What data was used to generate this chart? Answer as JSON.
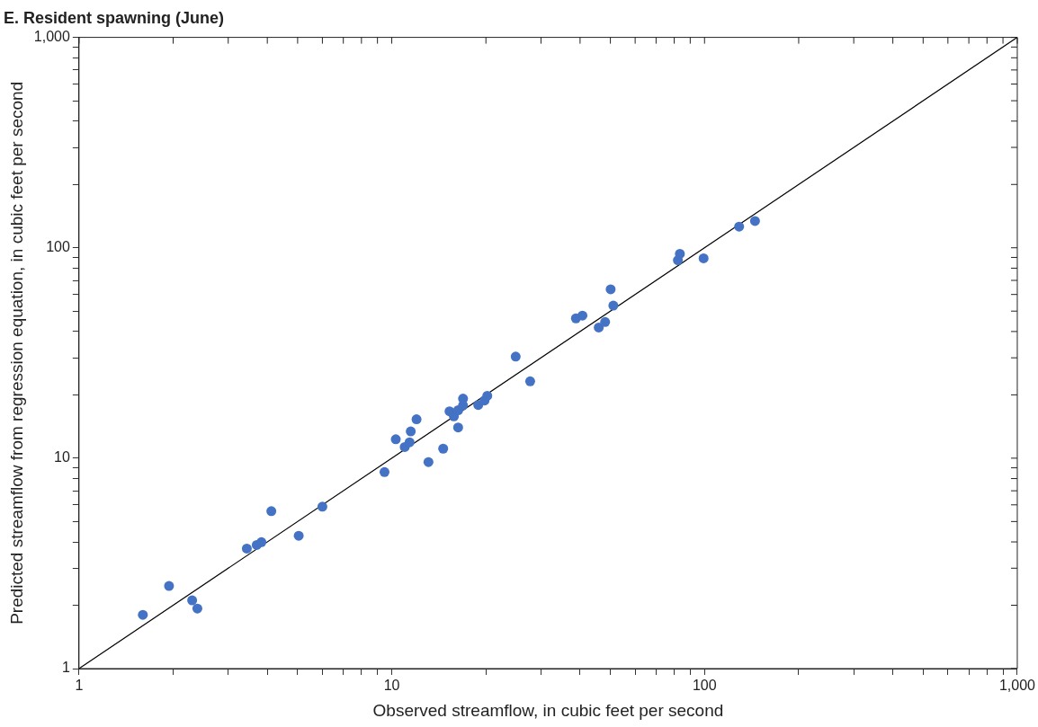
{
  "chart_data": {
    "type": "scatter",
    "title": "E. Resident spawning (June)",
    "xlabel": "Observed streamflow, in cubic feet per second",
    "ylabel": "Predicted streamflow from regression equation, in cubic feet per second",
    "log": "xy",
    "grid": false,
    "legend": false,
    "marker": "circle",
    "xlim": [
      1,
      1000
    ],
    "ylim": [
      1,
      1000
    ],
    "xticks": [
      1,
      {
        "value": 2,
        "label": null
      },
      {
        "value": 3,
        "label": null
      },
      {
        "value": 4,
        "label": null
      },
      {
        "value": 5,
        "label": null
      },
      {
        "value": 6,
        "label": null
      },
      {
        "value": 7,
        "label": null
      },
      {
        "value": 8,
        "label": null
      },
      {
        "value": 9,
        "label": null
      },
      10,
      {
        "value": 20,
        "label": null
      },
      {
        "value": 30,
        "label": null
      },
      {
        "value": 40,
        "label": null
      },
      {
        "value": 50,
        "label": null
      },
      {
        "value": 60,
        "label": null
      },
      {
        "value": 70,
        "label": null
      },
      {
        "value": 80,
        "label": null
      },
      {
        "value": 90,
        "label": null
      },
      100,
      {
        "value": 200,
        "label": null
      },
      {
        "value": 300,
        "label": null
      },
      {
        "value": 400,
        "label": null
      },
      {
        "value": 500,
        "label": null
      },
      {
        "value": 600,
        "label": null
      },
      {
        "value": 700,
        "label": null
      },
      {
        "value": 800,
        "label": null
      },
      {
        "value": 900,
        "label": null
      },
      {
        "value": 1000,
        "label": "1,000"
      }
    ],
    "yticks": [
      1,
      {
        "value": 2,
        "label": null
      },
      {
        "value": 3,
        "label": null
      },
      {
        "value": 4,
        "label": null
      },
      {
        "value": 5,
        "label": null
      },
      {
        "value": 6,
        "label": null
      },
      {
        "value": 7,
        "label": null
      },
      {
        "value": 8,
        "label": null
      },
      {
        "value": 9,
        "label": null
      },
      10,
      {
        "value": 20,
        "label": null
      },
      {
        "value": 30,
        "label": null
      },
      {
        "value": 40,
        "label": null
      },
      {
        "value": 50,
        "label": null
      },
      {
        "value": 60,
        "label": null
      },
      {
        "value": 70,
        "label": null
      },
      {
        "value": 80,
        "label": null
      },
      {
        "value": 90,
        "label": null
      },
      100,
      {
        "value": 200,
        "label": null
      },
      {
        "value": 300,
        "label": null
      },
      {
        "value": 400,
        "label": null
      },
      {
        "value": 500,
        "label": null
      },
      {
        "value": 600,
        "label": null
      },
      {
        "value": 700,
        "label": null
      },
      {
        "value": 800,
        "label": null
      },
      {
        "value": 900,
        "label": null
      },
      {
        "value": 1000,
        "label": "1,000"
      }
    ],
    "series": [
      {
        "type": "scatter",
        "color": "#4472c4",
        "x": [
          1.6,
          1.94,
          2.3,
          2.39,
          3.44,
          3.7,
          3.83,
          4.12,
          5.04,
          6.0,
          9.48,
          10.3,
          11.0,
          11.4,
          11.5,
          12.0,
          13.1,
          14.6,
          15.3,
          15.8,
          16.3,
          16.3,
          16.9,
          16.9,
          18.9,
          19.8,
          20.2,
          24.9,
          27.7,
          38.8,
          40.7,
          45.9,
          48.1,
          50.1,
          51.1,
          82.2,
          83.4,
          99.3,
          129,
          145
        ],
        "values": [
          1.8,
          2.47,
          2.11,
          1.93,
          3.72,
          3.87,
          3.99,
          5.6,
          4.28,
          5.88,
          8.59,
          12.3,
          11.3,
          11.9,
          13.4,
          15.3,
          9.58,
          11.1,
          16.7,
          15.8,
          16.9,
          14.0,
          17.8,
          19.2,
          17.9,
          18.8,
          19.8,
          30.4,
          23.2,
          46.2,
          47.6,
          41.8,
          44.4,
          63.5,
          53.1,
          87.3,
          93.6,
          89.1,
          126,
          134
        ]
      },
      {
        "type": "line",
        "color": "#000000",
        "marker": "none",
        "x": [
          1,
          1000
        ],
        "values": [
          1,
          1000
        ]
      }
    ]
  }
}
